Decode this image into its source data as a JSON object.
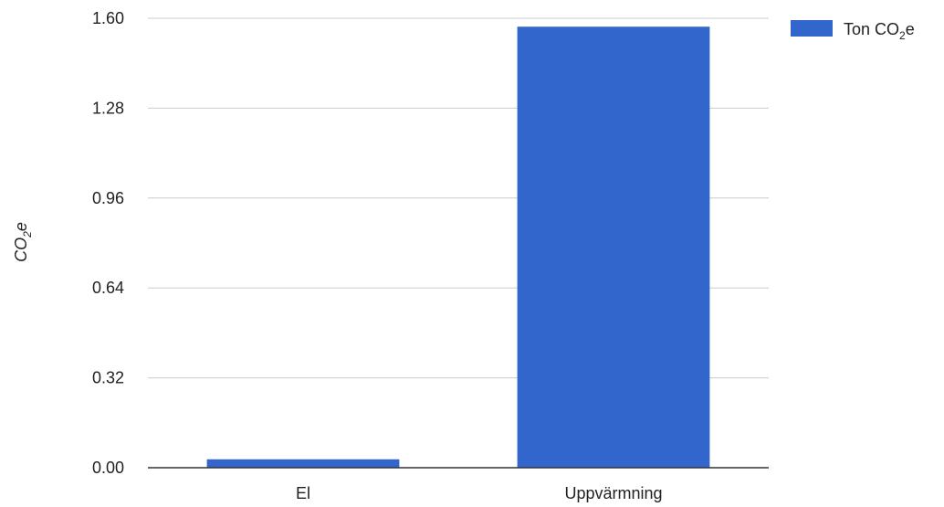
{
  "chart_data": {
    "type": "bar",
    "categories": [
      "El",
      "Uppvärmning"
    ],
    "series": [
      {
        "name": "Ton CO₂e",
        "name_parts": {
          "prefix": "Ton CO",
          "sub": "2",
          "suffix": "e"
        },
        "values": [
          0.03,
          1.57
        ],
        "color": "#3366cc"
      }
    ],
    "y_ticks": [
      "0.00",
      "0.32",
      "0.64",
      "0.96",
      "1.28",
      "1.60"
    ],
    "ylim": [
      0,
      1.6
    ],
    "ylabel": "CO₂e",
    "ylabel_parts": {
      "prefix": "CO",
      "sub": "2",
      "suffix": "e"
    },
    "xlabel": "",
    "title": "",
    "grid": true,
    "legend_position": "top-right"
  }
}
